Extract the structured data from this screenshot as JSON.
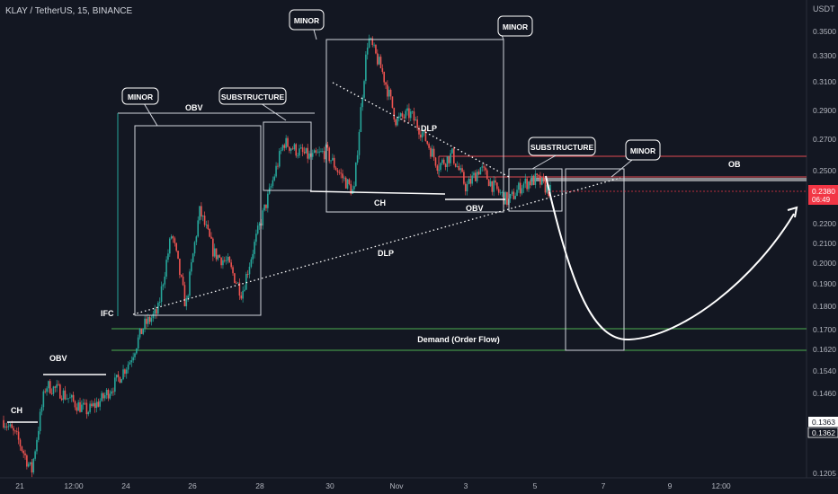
{
  "header": {
    "symbol_title": "KLAY / TetherUS, 15, BINANCE",
    "currency": "USDT"
  },
  "price_axis": {
    "ticks": [
      "0.3500",
      "0.3300",
      "0.3100",
      "0.2900",
      "0.2700",
      "0.2500",
      "0.2200",
      "0.2100",
      "0.2000",
      "0.1900",
      "0.1800",
      "0.1700",
      "0.1620",
      "0.1540",
      "0.1460",
      "0.1363",
      "0.1362",
      "0.1205"
    ],
    "current_price": "0.2380",
    "countdown": "06:49",
    "marker_upper": "0.1363",
    "marker_lower": "0.1362"
  },
  "time_axis": {
    "ticks": [
      "21",
      "12:00",
      "24",
      "26",
      "28",
      "30",
      "Nov",
      "3",
      "5",
      "7",
      "9",
      "12:00"
    ]
  },
  "annotations": {
    "minor_1": "MINOR",
    "minor_2": "MINOR",
    "minor_3": "MINOR",
    "minor_4": "MINOR",
    "substructure_1": "SUBSTRUCTURE",
    "substructure_2": "SUBSTRUCTURE",
    "obv_1": "OBV",
    "obv_2": "OBV",
    "obv_3": "OBV",
    "ch_1": "CH",
    "ch_2": "CH",
    "ifc": "IFC",
    "dlp_1": "DLP",
    "dlp_2": "DLP",
    "ob": "OB",
    "demand": "Demand (Order Flow)"
  },
  "colors": {
    "background": "#131722",
    "up_candle": "#26a69a",
    "down_candle": "#ef5350",
    "price_tag": "#f23645",
    "demand_line": "#4caf50",
    "ob_line": "#e04b52",
    "annotation": "#ffffff",
    "axis_text": "#b2b5be"
  },
  "chart_data": {
    "type": "candlestick",
    "title": "KLAY / TetherUS, 15, BINANCE",
    "y_unit": "USDT",
    "y_scale": "log",
    "ylim": [
      0.118,
      0.36
    ],
    "x_tick_labels": [
      "21",
      "12:00",
      "24",
      "26",
      "28",
      "30",
      "Nov",
      "3",
      "5",
      "7",
      "9",
      "12:00"
    ],
    "last_price": 0.238,
    "path": [
      {
        "x": "Oct 21",
        "p": 0.137
      },
      {
        "x": "",
        "p": 0.131
      },
      {
        "x": "",
        "p": 0.121
      },
      {
        "x": "",
        "p": 0.149
      },
      {
        "x": "",
        "p": 0.147
      },
      {
        "x": "",
        "p": 0.143
      },
      {
        "x": "12:00",
        "p": 0.14
      },
      {
        "x": "",
        "p": 0.144
      },
      {
        "x": "",
        "p": 0.15
      },
      {
        "x": "",
        "p": 0.158
      },
      {
        "x": "",
        "p": 0.172
      },
      {
        "x": "",
        "p": 0.178
      },
      {
        "x": "",
        "p": 0.215
      },
      {
        "x": "Oct 24",
        "p": 0.18
      },
      {
        "x": "",
        "p": 0.227
      },
      {
        "x": "",
        "p": 0.205
      },
      {
        "x": "",
        "p": 0.2
      },
      {
        "x": "Oct 26",
        "p": 0.186
      },
      {
        "x": "",
        "p": 0.212
      },
      {
        "x": "",
        "p": 0.238
      },
      {
        "x": "",
        "p": 0.268
      },
      {
        "x": "Oct 28",
        "p": 0.262
      },
      {
        "x": "",
        "p": 0.258
      },
      {
        "x": "",
        "p": 0.262
      },
      {
        "x": "",
        "p": 0.248
      },
      {
        "x": "",
        "p": 0.237
      },
      {
        "x": "Oct 30",
        "p": 0.345
      },
      {
        "x": "",
        "p": 0.318
      },
      {
        "x": "",
        "p": 0.282
      },
      {
        "x": "",
        "p": 0.287
      },
      {
        "x": "",
        "p": 0.272
      },
      {
        "x": "Nov 1",
        "p": 0.253
      },
      {
        "x": "",
        "p": 0.26
      },
      {
        "x": "",
        "p": 0.24
      },
      {
        "x": "Nov 3",
        "p": 0.252
      },
      {
        "x": "",
        "p": 0.24
      },
      {
        "x": "",
        "p": 0.232
      },
      {
        "x": "",
        "p": 0.242
      },
      {
        "x": "Nov 5",
        "p": 0.245
      },
      {
        "x": "",
        "p": 0.238
      }
    ],
    "projection": [
      {
        "x": "Nov 5",
        "p": 0.242
      },
      {
        "x": "Nov 6",
        "p": 0.185
      },
      {
        "x": "Nov 7",
        "p": 0.165
      },
      {
        "x": "Nov 8",
        "p": 0.168
      },
      {
        "x": "Nov 10",
        "p": 0.188
      },
      {
        "x": "12:00",
        "p": 0.227
      }
    ],
    "levels": [
      {
        "label": "Demand (Order Flow)",
        "from": 0.162,
        "to": 0.171
      },
      {
        "label": "OB",
        "from": 0.247,
        "to": 0.26
      }
    ],
    "trendlines": [
      "DLP",
      "DLP"
    ],
    "grid": false,
    "legend": "none"
  }
}
